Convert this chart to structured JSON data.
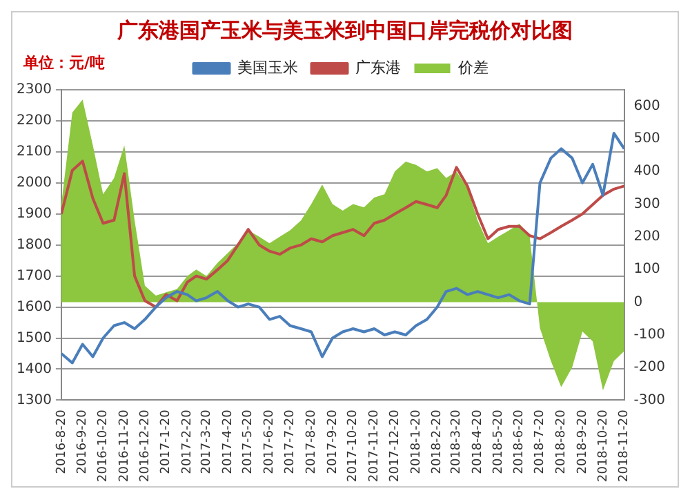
{
  "chart_data": {
    "type": "line",
    "title": "广东港国产玉米与美玉米到中国口岸完税价对比图",
    "annotations": [
      "单位：元/吨"
    ],
    "x": [
      "2016-08-20",
      "2016-09-05",
      "2016-09-20",
      "2016-10-05",
      "2016-10-20",
      "2016-11-05",
      "2016-11-20",
      "2016-12-05",
      "2016-12-20",
      "2017-01-05",
      "2017-01-20",
      "2017-02-05",
      "2017-02-20",
      "2017-03-05",
      "2017-03-20",
      "2017-04-05",
      "2017-04-20",
      "2017-05-05",
      "2017-05-20",
      "2017-06-05",
      "2017-06-20",
      "2017-07-05",
      "2017-07-20",
      "2017-08-05",
      "2017-08-20",
      "2017-09-05",
      "2017-09-20",
      "2017-10-05",
      "2017-10-20",
      "2017-11-05",
      "2017-11-20",
      "2017-12-05",
      "2017-12-20",
      "2018-01-05",
      "2018-01-20",
      "2018-02-05",
      "2018-02-20",
      "2018-03-05",
      "2018-03-20",
      "2018-04-05",
      "2018-04-20",
      "2018-05-05",
      "2018-05-20",
      "2018-06-05",
      "2018-06-20",
      "2018-07-05",
      "2018-07-20",
      "2018-08-05",
      "2018-08-20",
      "2018-09-05",
      "2018-09-20",
      "2018-10-05",
      "2018-10-20",
      "2018-11-05",
      "2018-11-20"
    ],
    "series": [
      {
        "name": "价差",
        "type": "area",
        "axis": "y2",
        "color": "#8dc63f",
        "values": [
          300,
          580,
          620,
          480,
          330,
          380,
          480,
          250,
          50,
          20,
          30,
          40,
          80,
          100,
          80,
          120,
          150,
          180,
          220,
          200,
          180,
          200,
          220,
          250,
          300,
          360,
          300,
          280,
          300,
          290,
          320,
          330,
          400,
          430,
          420,
          400,
          410,
          380,
          400,
          350,
          250,
          180,
          200,
          220,
          240,
          200,
          -80,
          -180,
          -260,
          -200,
          -90,
          -120,
          -270,
          -180,
          -150
        ]
      },
      {
        "name": "美国玉米",
        "color": "#4a7ebb",
        "values": [
          1450,
          1420,
          1480,
          1440,
          1500,
          1540,
          1550,
          1530,
          1560,
          1600,
          1630,
          1650,
          1640,
          1620,
          1630,
          1650,
          1620,
          1600,
          1610,
          1600,
          1560,
          1570,
          1540,
          1530,
          1520,
          1440,
          1500,
          1520,
          1530,
          1520,
          1530,
          1510,
          1520,
          1510,
          1540,
          1560,
          1600,
          1650,
          1660,
          1640,
          1650,
          1640,
          1630,
          1640,
          1620,
          1610,
          2000,
          2080,
          2110,
          2080,
          2000,
          2060,
          1960,
          2160,
          2110
        ]
      },
      {
        "name": "广东港",
        "color": "#be4b48",
        "values": [
          1900,
          2040,
          2070,
          1950,
          1870,
          1880,
          2030,
          1700,
          1620,
          1600,
          1640,
          1620,
          1680,
          1700,
          1690,
          1720,
          1750,
          1800,
          1850,
          1800,
          1780,
          1770,
          1790,
          1800,
          1820,
          1810,
          1830,
          1840,
          1850,
          1830,
          1870,
          1880,
          1900,
          1920,
          1940,
          1930,
          1920,
          1960,
          2050,
          1990,
          1900,
          1820,
          1850,
          1860,
          1860,
          1830,
          1820,
          1840,
          1860,
          1880,
          1900,
          1930,
          1960,
          1980,
          1990
        ]
      }
    ],
    "xlim": [
      "2016-08-20",
      "2018-11-20"
    ],
    "xticks": [
      {
        "value": "2016-08-20",
        "label": "2016-8-20"
      },
      {
        "value": "2016-09-20",
        "label": "2016-9-20"
      },
      {
        "value": "2016-10-20",
        "label": "2016-10-20"
      },
      {
        "value": "2016-11-20",
        "label": "2016-11-20"
      },
      {
        "value": "2016-12-20",
        "label": "2016-12-20"
      },
      {
        "value": "2017-01-20",
        "label": "2017-1-20"
      },
      {
        "value": "2017-02-20",
        "label": "2017-2-20"
      },
      {
        "value": "2017-03-20",
        "label": "2017-3-20"
      },
      {
        "value": "2017-04-20",
        "label": "2017-4-20"
      },
      {
        "value": "2017-05-20",
        "label": "2017-5-20"
      },
      {
        "value": "2017-06-20",
        "label": "2017-6-20"
      },
      {
        "value": "2017-07-20",
        "label": "2017-7-20"
      },
      {
        "value": "2017-08-20",
        "label": "2017-8-20"
      },
      {
        "value": "2017-09-20",
        "label": "2017-9-20"
      },
      {
        "value": "2017-10-20",
        "label": "2017-10-20"
      },
      {
        "value": "2017-11-20",
        "label": "2017-11-20"
      },
      {
        "value": "2017-12-20",
        "label": "2017-12-20"
      },
      {
        "value": "2018-01-20",
        "label": "2018-1-20"
      },
      {
        "value": "2018-02-20",
        "label": "2018-2-20"
      },
      {
        "value": "2018-03-20",
        "label": "2018-3-20"
      },
      {
        "value": "2018-04-20",
        "label": "2018-4-20"
      },
      {
        "value": "2018-05-20",
        "label": "2018-5-20"
      },
      {
        "value": "2018-06-20",
        "label": "2018-6-20"
      },
      {
        "value": "2018-07-20",
        "label": "2018-7-20"
      },
      {
        "value": "2018-08-20",
        "label": "2018-8-20"
      },
      {
        "value": "2018-09-20",
        "label": "2018-9-20"
      },
      {
        "value": "2018-10-20",
        "label": "2018-10-20"
      },
      {
        "value": "2018-11-20",
        "label": "2018-11-20"
      }
    ],
    "ylim": [
      1300,
      2300
    ],
    "yticks": [
      1300,
      1400,
      1500,
      1600,
      1700,
      1800,
      1900,
      2000,
      2100,
      2200,
      2300
    ],
    "y2lim": [
      -300,
      650
    ],
    "y2ticks": [
      -300,
      -200,
      -100,
      0,
      100,
      200,
      300,
      400,
      500,
      600
    ],
    "grid": "y",
    "legend": "top",
    "marker": "none",
    "line_style": "solid"
  }
}
